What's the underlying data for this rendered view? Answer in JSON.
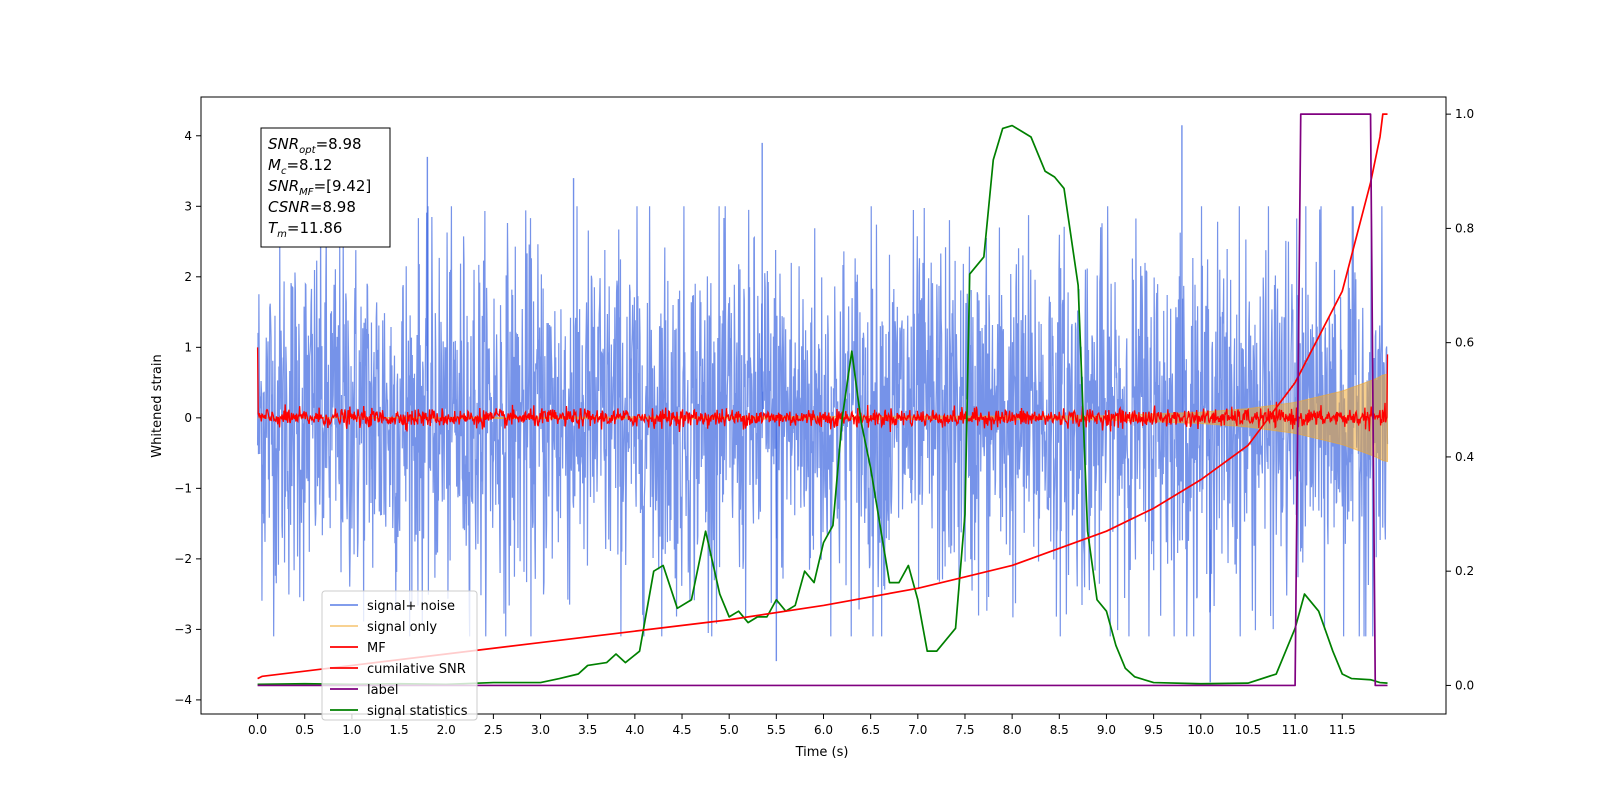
{
  "chart_data": {
    "type": "line",
    "xlabel": "Time (s)",
    "ylabel_left": "Whitened strain",
    "ylabel_right": "",
    "xlim": [
      -0.6,
      12.6
    ],
    "ylim_left": [
      -4.2,
      4.55
    ],
    "ylim_right": [
      -0.05,
      1.03
    ],
    "x_ticks": [
      0.0,
      0.5,
      1.0,
      1.5,
      2.0,
      2.5,
      3.0,
      3.5,
      4.0,
      4.5,
      5.0,
      5.5,
      6.0,
      6.5,
      7.0,
      7.5,
      8.0,
      8.5,
      9.0,
      9.5,
      10.0,
      10.5,
      11.0,
      11.5
    ],
    "x_tick_labels": [
      "0.0",
      "0.5",
      "1.0",
      "1.5",
      "2.0",
      "2.5",
      "3.0",
      "3.5",
      "4.0",
      "4.5",
      "5.0",
      "5.5",
      "6.0",
      "6.5",
      "7.0",
      "7.5",
      "8.0",
      "8.5",
      "9.0",
      "9.5",
      "10.0",
      "10.5",
      "11.0",
      "11.5"
    ],
    "y_ticks_left": [
      -4,
      -3,
      -2,
      -1,
      0,
      1,
      2,
      3,
      4
    ],
    "y_tick_labels_left": [
      "−4",
      "−3",
      "−2",
      "−1",
      "0",
      "1",
      "2",
      "3",
      "4"
    ],
    "y_ticks_right": [
      0.0,
      0.2,
      0.4,
      0.6,
      0.8,
      1.0
    ],
    "y_tick_labels_right": [
      "0.0",
      "0.2",
      "0.4",
      "0.6",
      "0.8",
      "1.0"
    ],
    "grid": false,
    "legend_position": "lower-left",
    "colors": {
      "signal_noise": "#4169e1",
      "signal_only": "#f0a830",
      "mf": "#ff0000",
      "cumulative_snr": "#ff0000",
      "label": "#800080",
      "signal_statistics": "#008000"
    },
    "series": [
      {
        "name": "signal+ noise",
        "axis": "left",
        "style": "noisy band",
        "x_range": [
          0.0,
          11.98
        ],
        "typical_amplitude": 1.8,
        "peak_values": [
          {
            "x": 1.8,
            "y": 3.7
          },
          {
            "x": 3.35,
            "y": 3.4
          },
          {
            "x": 5.35,
            "y": 3.9
          },
          {
            "x": 9.8,
            "y": 4.15
          },
          {
            "x": 10.1,
            "y": -3.75
          },
          {
            "x": 5.5,
            "y": -3.45
          }
        ]
      },
      {
        "name": "signal only",
        "axis": "left",
        "style": "chirp envelope",
        "x_range": [
          0.0,
          11.98
        ],
        "envelope_points": [
          [
            0.0,
            0.0
          ],
          [
            9.0,
            0.03
          ],
          [
            10.0,
            0.08
          ],
          [
            10.5,
            0.13
          ],
          [
            11.0,
            0.22
          ],
          [
            11.5,
            0.38
          ],
          [
            11.85,
            0.55
          ],
          [
            11.95,
            0.62
          ]
        ]
      },
      {
        "name": "MF",
        "axis": "left",
        "style": "noisy line",
        "x_range": [
          0.0,
          11.98
        ],
        "typical_amplitude": 0.08,
        "start_value": 1.0,
        "end_value": 0.9
      },
      {
        "name": "cumilative SNR",
        "axis": "right",
        "points": [
          [
            0.0,
            0.012
          ],
          [
            0.05,
            0.016
          ],
          [
            1.0,
            0.035
          ],
          [
            2.0,
            0.055
          ],
          [
            3.0,
            0.075
          ],
          [
            4.0,
            0.095
          ],
          [
            5.0,
            0.115
          ],
          [
            6.0,
            0.14
          ],
          [
            7.0,
            0.17
          ],
          [
            7.5,
            0.19
          ],
          [
            8.0,
            0.21
          ],
          [
            8.5,
            0.24
          ],
          [
            9.0,
            0.27
          ],
          [
            9.5,
            0.31
          ],
          [
            10.0,
            0.36
          ],
          [
            10.5,
            0.42
          ],
          [
            11.0,
            0.53
          ],
          [
            11.5,
            0.69
          ],
          [
            11.8,
            0.88
          ],
          [
            11.9,
            0.96
          ],
          [
            11.93,
            1.0
          ],
          [
            11.98,
            1.0
          ]
        ]
      },
      {
        "name": "label",
        "axis": "right",
        "points": [
          [
            0.0,
            0.0
          ],
          [
            11.0,
            0.0
          ],
          [
            11.06,
            1.0
          ],
          [
            11.8,
            1.0
          ],
          [
            11.85,
            0.0
          ],
          [
            11.98,
            0.0
          ]
        ]
      },
      {
        "name": "signal statistics",
        "axis": "right",
        "points": [
          [
            0.0,
            0.002
          ],
          [
            0.5,
            0.003
          ],
          [
            1.0,
            0.002
          ],
          [
            1.5,
            0.003
          ],
          [
            2.0,
            0.002
          ],
          [
            2.5,
            0.005
          ],
          [
            3.0,
            0.005
          ],
          [
            3.2,
            0.012
          ],
          [
            3.4,
            0.02
          ],
          [
            3.5,
            0.035
          ],
          [
            3.7,
            0.04
          ],
          [
            3.8,
            0.055
          ],
          [
            3.9,
            0.04
          ],
          [
            4.05,
            0.06
          ],
          [
            4.2,
            0.2
          ],
          [
            4.3,
            0.21
          ],
          [
            4.45,
            0.135
          ],
          [
            4.6,
            0.15
          ],
          [
            4.75,
            0.27
          ],
          [
            4.9,
            0.16
          ],
          [
            5.0,
            0.12
          ],
          [
            5.1,
            0.13
          ],
          [
            5.2,
            0.11
          ],
          [
            5.3,
            0.12
          ],
          [
            5.4,
            0.12
          ],
          [
            5.5,
            0.15
          ],
          [
            5.6,
            0.13
          ],
          [
            5.7,
            0.14
          ],
          [
            5.8,
            0.2
          ],
          [
            5.9,
            0.18
          ],
          [
            6.0,
            0.25
          ],
          [
            6.1,
            0.28
          ],
          [
            6.2,
            0.47
          ],
          [
            6.3,
            0.585
          ],
          [
            6.4,
            0.46
          ],
          [
            6.5,
            0.38
          ],
          [
            6.6,
            0.28
          ],
          [
            6.7,
            0.18
          ],
          [
            6.8,
            0.18
          ],
          [
            6.9,
            0.21
          ],
          [
            7.0,
            0.15
          ],
          [
            7.1,
            0.06
          ],
          [
            7.2,
            0.06
          ],
          [
            7.4,
            0.1
          ],
          [
            7.5,
            0.3
          ],
          [
            7.55,
            0.72
          ],
          [
            7.7,
            0.75
          ],
          [
            7.8,
            0.92
          ],
          [
            7.9,
            0.975
          ],
          [
            8.0,
            0.98
          ],
          [
            8.1,
            0.97
          ],
          [
            8.2,
            0.96
          ],
          [
            8.35,
            0.9
          ],
          [
            8.45,
            0.89
          ],
          [
            8.55,
            0.87
          ],
          [
            8.7,
            0.7
          ],
          [
            8.8,
            0.27
          ],
          [
            8.9,
            0.15
          ],
          [
            9.0,
            0.13
          ],
          [
            9.1,
            0.07
          ],
          [
            9.2,
            0.03
          ],
          [
            9.3,
            0.015
          ],
          [
            9.5,
            0.005
          ],
          [
            10.0,
            0.003
          ],
          [
            10.5,
            0.004
          ],
          [
            10.8,
            0.02
          ],
          [
            10.9,
            0.06
          ],
          [
            11.0,
            0.1
          ],
          [
            11.1,
            0.16
          ],
          [
            11.25,
            0.13
          ],
          [
            11.4,
            0.06
          ],
          [
            11.5,
            0.02
          ],
          [
            11.6,
            0.012
          ],
          [
            11.8,
            0.01
          ],
          [
            11.9,
            0.005
          ],
          [
            11.98,
            0.004
          ]
        ]
      }
    ],
    "annotation_box": [
      {
        "symbol": "SNR",
        "subscript": "opt",
        "value": "=8.98"
      },
      {
        "symbol": "M",
        "subscript": "c",
        "value": "=8.12"
      },
      {
        "symbol": "SNR",
        "subscript": "MF",
        "value": "=[9.42]"
      },
      {
        "symbol": "CSNR",
        "subscript": "",
        "value": "=8.98"
      },
      {
        "symbol": "T",
        "subscript": "m",
        "value": "=11.86"
      }
    ]
  }
}
